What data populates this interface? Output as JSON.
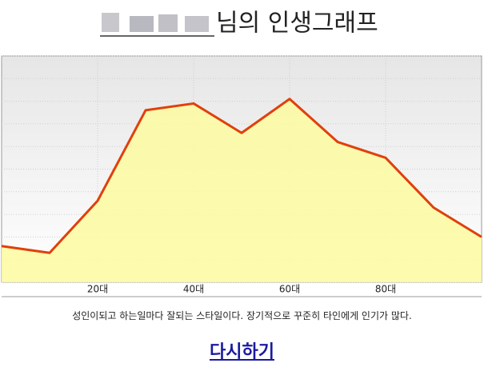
{
  "chart_data": {
    "type": "area",
    "title": "님의 인생그래프",
    "x": [
      0,
      10,
      20,
      30,
      40,
      50,
      60,
      70,
      80,
      90,
      100
    ],
    "values": [
      16,
      13,
      36,
      76,
      79,
      66,
      81,
      62,
      55,
      33,
      20
    ],
    "color": "#e0400c",
    "fill_color": "#fdfaa0",
    "xlim": [
      0,
      100
    ],
    "ylim": [
      0,
      100
    ],
    "xticks": [
      {
        "value": 20,
        "label": "20대"
      },
      {
        "value": 40,
        "label": "40대"
      },
      {
        "value": 60,
        "label": "60대"
      },
      {
        "value": 80,
        "label": "80대"
      }
    ],
    "yticks": [
      0,
      10,
      20,
      30,
      40,
      50,
      60,
      70,
      80,
      90,
      100
    ],
    "grid": true
  },
  "description": "성인이되고 하는일마다 잘되는 스타일이다. 장기적으로 꾸준히 타인에게 인기가 많다.",
  "link": "다시하기"
}
